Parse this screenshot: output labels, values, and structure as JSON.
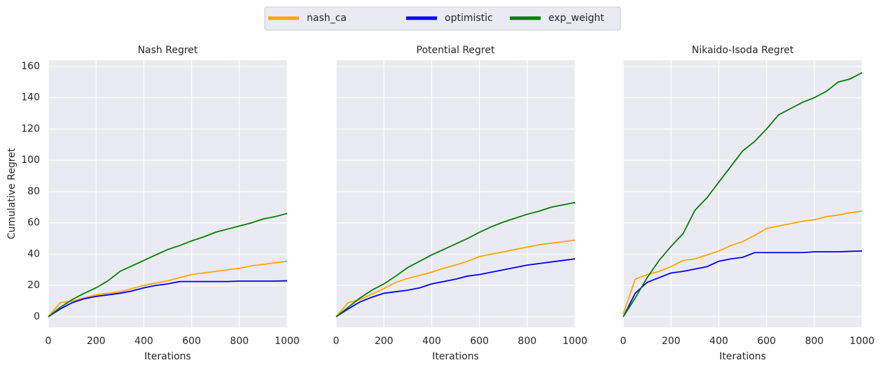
{
  "chart_data": [
    {
      "type": "line",
      "title": "Nash Regret",
      "xlabel": "Iterations",
      "ylabel": "Cumulative Regret",
      "x": [
        0,
        50,
        100,
        150,
        200,
        250,
        300,
        350,
        400,
        450,
        500,
        550,
        600,
        650,
        700,
        750,
        800,
        850,
        900,
        950,
        1000
      ],
      "series": [
        {
          "name": "nash_ca",
          "color": "#ffa500",
          "values": [
            0,
            9,
            10,
            12,
            14,
            15,
            16,
            18,
            20,
            21.5,
            23,
            25,
            27,
            28,
            29,
            30,
            31,
            32.5,
            33.5,
            34.5,
            35.5
          ]
        },
        {
          "name": "optimistic",
          "color": "#0000ff",
          "values": [
            0,
            5,
            9,
            11.5,
            13,
            14,
            15,
            16.5,
            18.5,
            20,
            21,
            22.5,
            22.5,
            22.5,
            22.5,
            22.5,
            22.8,
            22.8,
            22.8,
            22.8,
            23
          ]
        },
        {
          "name": "exp_weight",
          "color": "#008000",
          "values": [
            0,
            6,
            11,
            15,
            18.5,
            23,
            29,
            32.5,
            36,
            39.5,
            43,
            45.5,
            48.5,
            51,
            54,
            56,
            58,
            60,
            62.5,
            64,
            66
          ]
        }
      ],
      "xlim": [
        0,
        1000
      ],
      "xticks": [
        0,
        200,
        400,
        600,
        800,
        1000
      ],
      "ylim": [
        -6.7,
        164
      ],
      "yticks": [
        0,
        20,
        40,
        60,
        80,
        100,
        120,
        140,
        160
      ],
      "ytick_labels": true,
      "grid": true,
      "legend": "upper center"
    },
    {
      "type": "line",
      "title": "Potential Regret",
      "xlabel": "Iterations",
      "x": [
        0,
        50,
        100,
        150,
        200,
        250,
        300,
        350,
        400,
        450,
        500,
        550,
        600,
        650,
        700,
        750,
        800,
        850,
        900,
        950,
        1000
      ],
      "series": [
        {
          "name": "nash_ca",
          "color": "#ffa500",
          "values": [
            0,
            9,
            11,
            14.5,
            18,
            22,
            24.5,
            26.5,
            28.5,
            31,
            33,
            35.5,
            38.5,
            40,
            41.5,
            43,
            44.5,
            46,
            47,
            48,
            49
          ]
        },
        {
          "name": "optimistic",
          "color": "#0000ff",
          "values": [
            0,
            5,
            9.5,
            12.5,
            15,
            16,
            17,
            18.5,
            21,
            22.5,
            24,
            26,
            27,
            28.5,
            30,
            31.5,
            33,
            34,
            35,
            36,
            37
          ]
        },
        {
          "name": "exp_weight",
          "color": "#008000",
          "values": [
            0,
            6,
            12,
            17,
            21,
            26,
            31.5,
            35.5,
            39.5,
            43,
            46.5,
            50,
            54,
            57.5,
            60.5,
            63,
            65.5,
            67.5,
            70,
            71.5,
            73
          ]
        }
      ],
      "xlim": [
        0,
        1000
      ],
      "xticks": [
        0,
        200,
        400,
        600,
        800,
        1000
      ],
      "ylim": [
        -6.7,
        164
      ],
      "yticks": [
        0,
        20,
        40,
        60,
        80,
        100,
        120,
        140,
        160
      ],
      "ytick_labels": false,
      "grid": true
    },
    {
      "type": "line",
      "title": "Nikaido-Isoda Regret",
      "xlabel": "Iterations",
      "x": [
        0,
        50,
        100,
        150,
        200,
        250,
        300,
        350,
        400,
        450,
        500,
        550,
        600,
        650,
        700,
        750,
        800,
        850,
        900,
        950,
        1000
      ],
      "series": [
        {
          "name": "nash_ca",
          "color": "#ffa500",
          "values": [
            2,
            24,
            27,
            29,
            32,
            36,
            37,
            39.5,
            42,
            45.5,
            48,
            52,
            56.5,
            58,
            59.5,
            61,
            62,
            64,
            65,
            66.5,
            67.5
          ]
        },
        {
          "name": "optimistic",
          "color": "#0000ff",
          "values": [
            0,
            15,
            22,
            25,
            28,
            29,
            30.5,
            32,
            35.5,
            37,
            38,
            41,
            41,
            41,
            41,
            41,
            41.5,
            41.5,
            41.5,
            41.8,
            42
          ]
        },
        {
          "name": "exp_weight",
          "color": "#008000",
          "values": [
            0,
            12,
            25,
            36,
            45,
            53,
            68,
            76,
            86,
            96,
            106,
            112,
            120,
            129,
            133,
            137,
            140,
            144,
            150,
            152,
            156
          ]
        }
      ],
      "xlim": [
        0,
        1000
      ],
      "xticks": [
        0,
        200,
        400,
        600,
        800,
        1000
      ],
      "ylim": [
        -6.7,
        164
      ],
      "yticks": [
        0,
        20,
        40,
        60,
        80,
        100,
        120,
        140,
        160
      ],
      "ytick_labels": false,
      "grid": true
    }
  ]
}
